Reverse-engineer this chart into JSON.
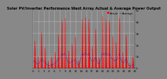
{
  "title": "Solar PV/Inverter Performance West Array Actual & Average Power Output",
  "bg_color": "#888888",
  "plot_bg_color": "#888888",
  "bar_color": "#ff0000",
  "avg_color": "#0000cc",
  "legend_actual": "Actual",
  "legend_avg": "Average",
  "ylim": [
    0,
    5000
  ],
  "yticks": [
    0,
    1000,
    2000,
    3000,
    4000,
    5000
  ],
  "ytick_labels": [
    "0",
    "1k",
    "2k",
    "3k",
    "4k",
    "5k"
  ],
  "num_points": 600,
  "days": 30,
  "title_fontsize": 3.8,
  "axis_fontsize": 2.8,
  "grid_color": "#ffffff",
  "legend_color_actual": "#ff0000",
  "legend_color_avg": "#0000cc"
}
